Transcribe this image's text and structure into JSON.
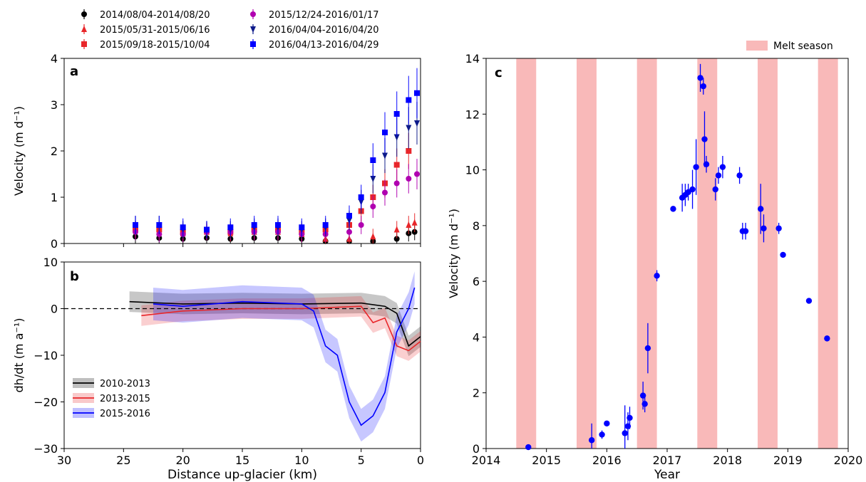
{
  "chart_data": [
    {
      "panel": "a",
      "type": "scatter",
      "xlabel": "",
      "ylabel": "Velocity (m d⁻¹)",
      "xlim": [
        30,
        0
      ],
      "ylim": [
        0,
        4
      ],
      "x_reversed": true,
      "yticks": [
        "0",
        "1",
        "2",
        "3",
        "4"
      ],
      "legend_position": "top, two columns above the panel",
      "series": [
        {
          "name": "2014/08/04-2014/08/20",
          "color": "#000000",
          "marker": "circle",
          "x": [
            24,
            22,
            20,
            18,
            16,
            14,
            12,
            10,
            8,
            6,
            4,
            2,
            1,
            0.5
          ],
          "y": [
            0.15,
            0.12,
            0.1,
            0.12,
            0.1,
            0.12,
            0.12,
            0.1,
            0.05,
            0.05,
            0.05,
            0.1,
            0.22,
            0.25
          ]
        },
        {
          "name": "2015/05/31-2015/06/16",
          "color": "#e8262a",
          "marker": "triangle-up",
          "x": [
            24,
            22,
            20,
            18,
            16,
            14,
            12,
            10,
            8,
            6,
            4,
            2,
            1,
            0.5
          ],
          "y": [
            0.3,
            0.25,
            0.22,
            0.25,
            0.22,
            0.25,
            0.25,
            0.2,
            0.1,
            0.1,
            0.15,
            0.3,
            0.4,
            0.45
          ]
        },
        {
          "name": "2015/09/18-2015/10/04",
          "color": "#e8262a",
          "marker": "square",
          "x": [
            24,
            22,
            20,
            18,
            16,
            14,
            12,
            10,
            8,
            6,
            5,
            4,
            3,
            2,
            1
          ],
          "y": [
            0.3,
            0.3,
            0.25,
            0.28,
            0.25,
            0.3,
            0.3,
            0.25,
            0.3,
            0.4,
            0.7,
            1.0,
            1.3,
            1.7,
            2.0
          ]
        },
        {
          "name": "2015/12/24-2016/01/17",
          "color": "#b000b0",
          "marker": "circle",
          "x": [
            24,
            22,
            20,
            18,
            16,
            14,
            12,
            10,
            8,
            6,
            5,
            4,
            3,
            2,
            1,
            0.3
          ],
          "y": [
            0.25,
            0.2,
            0.2,
            0.25,
            0.25,
            0.25,
            0.25,
            0.2,
            0.2,
            0.25,
            0.4,
            0.8,
            1.1,
            1.3,
            1.4,
            1.5
          ]
        },
        {
          "name": "2016/04/04-2016/04/20",
          "color": "#0d1a8a",
          "marker": "triangle-down",
          "x": [
            24,
            22,
            20,
            18,
            16,
            14,
            12,
            10,
            8,
            6,
            5,
            4,
            3,
            2,
            1,
            0.3
          ],
          "y": [
            0.4,
            0.4,
            0.3,
            0.3,
            0.3,
            0.35,
            0.35,
            0.3,
            0.35,
            0.5,
            0.9,
            1.4,
            1.9,
            2.3,
            2.5,
            2.6
          ]
        },
        {
          "name": "2016/04/13-2016/04/29",
          "color": "#0000ff",
          "marker": "square",
          "x": [
            24,
            22,
            20,
            18,
            16,
            14,
            12,
            10,
            8,
            6,
            5,
            4,
            3,
            2,
            1,
            0.3
          ],
          "y": [
            0.4,
            0.4,
            0.35,
            0.3,
            0.35,
            0.4,
            0.4,
            0.35,
            0.4,
            0.6,
            1.0,
            1.8,
            2.4,
            2.8,
            3.1,
            3.25
          ]
        }
      ]
    },
    {
      "panel": "b",
      "type": "line",
      "xlabel": "Distance up-glacier (km)",
      "ylabel": "dh/dt (m a⁻¹)",
      "xlim": [
        30,
        0
      ],
      "ylim": [
        -30,
        10
      ],
      "x_reversed": true,
      "xticks": [
        "30",
        "25",
        "20",
        "15",
        "10",
        "5",
        "0"
      ],
      "yticks": [
        "−30",
        "−20",
        "−10",
        "0",
        "10"
      ],
      "reference_line": 0,
      "legend_position": "lower left",
      "series": [
        {
          "name": "2010-2013",
          "color": "#000000",
          "x": [
            24.5,
            20,
            15,
            10,
            5,
            3,
            2,
            1,
            0
          ],
          "y": [
            1.5,
            1.0,
            1.2,
            1.0,
            1.2,
            0.5,
            -1.0,
            -8.0,
            -6.0
          ]
        },
        {
          "name": "2013-2015",
          "color": "#e8262a",
          "x": [
            23.5,
            20,
            15,
            10,
            5,
            4,
            3,
            2,
            1,
            0
          ],
          "y": [
            -1.5,
            -0.5,
            0.0,
            0.0,
            0.5,
            -3.0,
            -2.0,
            -8.0,
            -9.0,
            -7.0
          ]
        },
        {
          "name": "2015-2016",
          "color": "#0000ff",
          "x": [
            22.5,
            20,
            15,
            10,
            9,
            8,
            7,
            6,
            5,
            4,
            3,
            2,
            1,
            0.5
          ],
          "y": [
            1.0,
            0.5,
            1.5,
            1.0,
            -0.5,
            -8.0,
            -10.0,
            -20.0,
            -25.0,
            -23.0,
            -18.0,
            -5.0,
            0.0,
            4.5
          ]
        }
      ]
    },
    {
      "panel": "c",
      "type": "scatter",
      "xlabel": "Year",
      "ylabel": "Velocity (m d⁻¹)",
      "xlim": [
        2014,
        2020
      ],
      "ylim": [
        0,
        14
      ],
      "xticks": [
        "2014",
        "2015",
        "2016",
        "2017",
        "2018",
        "2019",
        "2020"
      ],
      "yticks": [
        "0",
        "2",
        "4",
        "6",
        "8",
        "10",
        "12",
        "14"
      ],
      "legend_position": "top-right",
      "band_label": "Melt season",
      "melt_seasons": [
        [
          2014.5,
          2014.83
        ],
        [
          2015.5,
          2015.83
        ],
        [
          2016.5,
          2016.83
        ],
        [
          2017.5,
          2017.83
        ],
        [
          2018.5,
          2018.83
        ],
        [
          2019.5,
          2019.83
        ]
      ],
      "series": [
        {
          "color": "#0000ff",
          "x": [
            2014.7,
            2015.75,
            2015.92,
            2016.0,
            2016.3,
            2016.35,
            2016.38,
            2016.6,
            2016.63,
            2016.68,
            2016.83,
            2017.1,
            2017.25,
            2017.3,
            2017.35,
            2017.42,
            2017.48,
            2017.55,
            2017.6,
            2017.62,
            2017.65,
            2017.8,
            2017.85,
            2017.92,
            2018.2,
            2018.25,
            2018.3,
            2018.55,
            2018.6,
            2018.85,
            2018.92,
            2019.35,
            2019.65
          ],
          "y": [
            0.05,
            0.3,
            0.5,
            0.9,
            0.55,
            0.8,
            1.1,
            1.9,
            1.6,
            3.6,
            6.2,
            8.6,
            9.0,
            9.1,
            9.2,
            9.3,
            10.1,
            13.3,
            13.0,
            11.1,
            10.2,
            9.3,
            9.8,
            10.1,
            9.8,
            7.8,
            7.8,
            8.6,
            7.9,
            7.9,
            6.95,
            5.3,
            3.95
          ],
          "err": [
            0.05,
            0.6,
            0.15,
            0.1,
            1.0,
            0.5,
            0.4,
            0.5,
            0.3,
            0.9,
            0.2,
            0.1,
            0.5,
            0.4,
            0.3,
            0.7,
            1.0,
            0.5,
            0.3,
            1.0,
            0.3,
            0.4,
            0.3,
            0.4,
            0.3,
            0.3,
            0.3,
            0.9,
            0.5,
            0.2,
            0.1,
            0.1,
            0.1
          ]
        }
      ]
    }
  ]
}
